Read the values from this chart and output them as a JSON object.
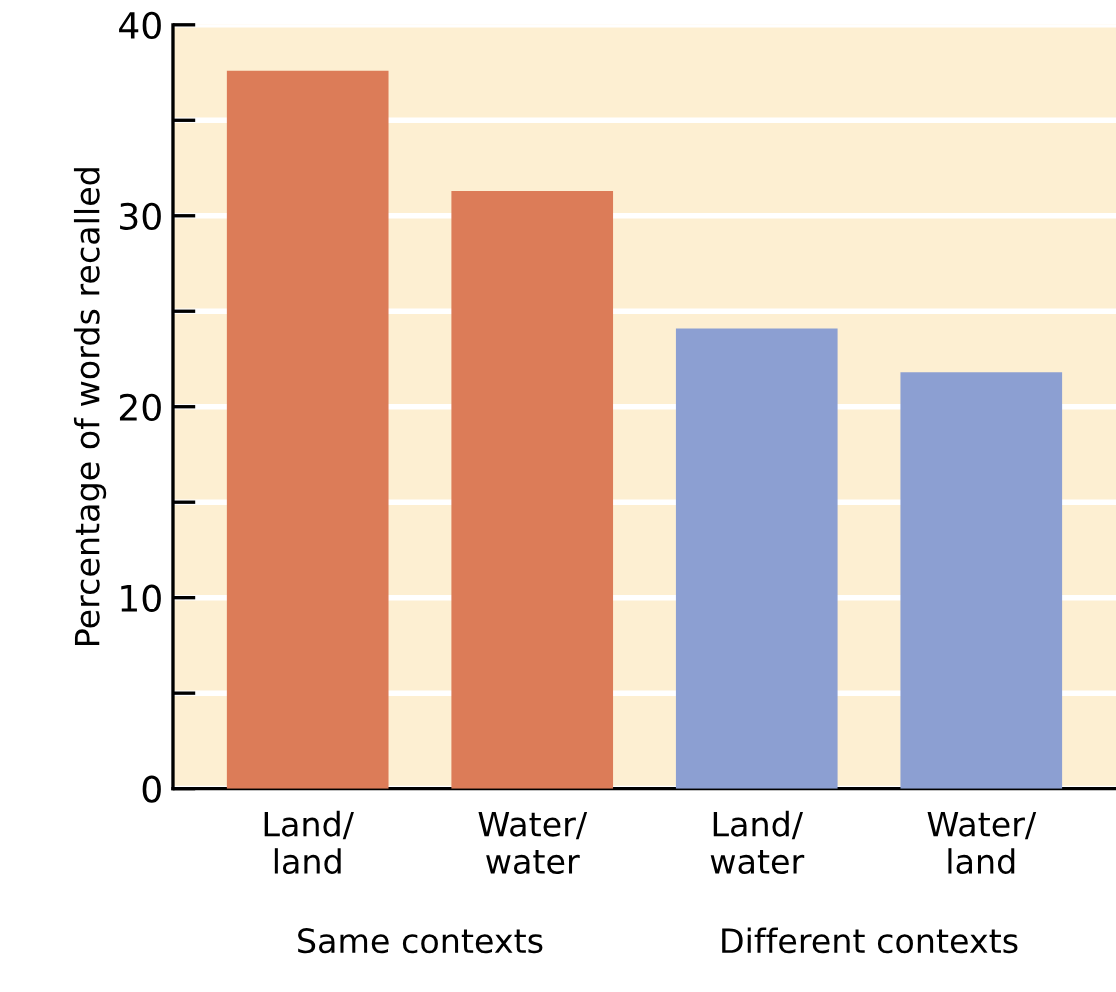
{
  "chart_data": {
    "type": "bar",
    "ylabel": "Percentage of words recalled",
    "categories": [
      "Land/\nland",
      "Water/\nwater",
      "Land/\nwater",
      "Water/\nland"
    ],
    "values": [
      37.6,
      31.3,
      24.1,
      21.8
    ],
    "colors": [
      "#dc7c58",
      "#dc7c58",
      "#8c9fd2",
      "#8c9fd2"
    ],
    "ylim": [
      0,
      40
    ],
    "yticks": [
      0,
      {
        "value": 5,
        "label": null
      },
      10,
      {
        "value": 15,
        "label": null
      },
      20,
      {
        "value": 25,
        "label": null
      },
      30,
      {
        "value": 35,
        "label": null
      },
      40
    ],
    "grid": "y",
    "annotations": [
      "Same contexts",
      "Different contexts"
    ]
  }
}
